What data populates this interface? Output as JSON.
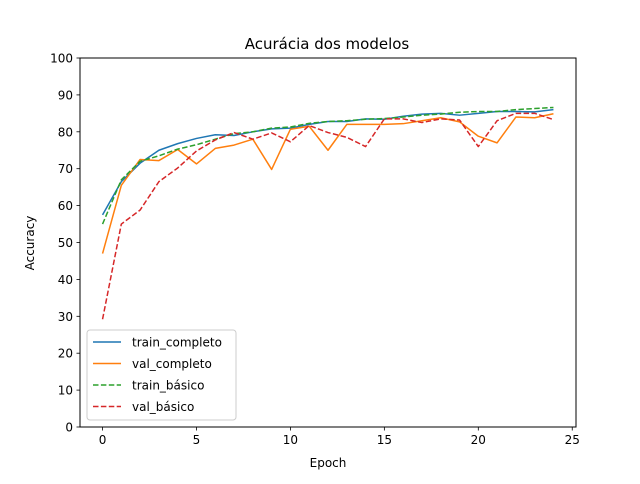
{
  "chart_data": {
    "type": "line",
    "title": "Acurácia dos modelos",
    "xlabel": "Epoch",
    "ylabel": "Accuracy",
    "xlim": [
      -1.2,
      25.2
    ],
    "ylim": [
      0,
      100
    ],
    "xticks": [
      0,
      5,
      10,
      15,
      20,
      25
    ],
    "yticks": [
      0,
      10,
      20,
      30,
      40,
      50,
      60,
      70,
      80,
      90,
      100
    ],
    "grid": false,
    "legend_position": "lower-left",
    "x": [
      0,
      1,
      2,
      3,
      4,
      5,
      6,
      7,
      8,
      9,
      10,
      11,
      12,
      13,
      14,
      15,
      16,
      17,
      18,
      19,
      20,
      21,
      22,
      23,
      24
    ],
    "series": [
      {
        "name": "train_completo",
        "color": "#1f77b4",
        "style": "solid",
        "values": [
          57.5,
          66.5,
          71.5,
          75.0,
          76.8,
          78.2,
          79.2,
          79.0,
          80.0,
          80.8,
          81.0,
          82.0,
          82.8,
          82.8,
          83.5,
          83.4,
          84.2,
          84.8,
          85.0,
          84.5,
          85.0,
          85.5,
          85.5,
          85.4,
          86.0
        ]
      },
      {
        "name": "val_completo",
        "color": "#ff7f0e",
        "style": "solid",
        "values": [
          47.0,
          65.5,
          72.5,
          72.2,
          75.2,
          71.3,
          75.5,
          76.4,
          78.0,
          69.8,
          80.7,
          81.5,
          75.0,
          82.0,
          82.0,
          82.0,
          82.2,
          83.0,
          83.8,
          82.7,
          78.8,
          77.0,
          84.0,
          83.8,
          84.9
        ]
      },
      {
        "name": "train_básico",
        "color": "#2ca02c",
        "style": "dashed",
        "values": [
          55.0,
          67.0,
          72.0,
          73.5,
          75.3,
          76.5,
          78.0,
          79.5,
          80.0,
          81.0,
          81.3,
          82.3,
          82.8,
          83.0,
          83.4,
          83.6,
          84.0,
          84.5,
          84.8,
          85.3,
          85.5,
          85.5,
          86.0,
          86.3,
          86.6
        ]
      },
      {
        "name": "val_básico",
        "color": "#d62728",
        "style": "dashed",
        "values": [
          29.2,
          55.0,
          58.8,
          66.5,
          70.2,
          74.8,
          77.8,
          79.8,
          78.0,
          79.7,
          77.3,
          81.7,
          79.8,
          78.5,
          76.0,
          83.5,
          83.5,
          82.5,
          83.5,
          83.2,
          76.0,
          83.0,
          85.0,
          85.0,
          83.3
        ]
      }
    ]
  }
}
